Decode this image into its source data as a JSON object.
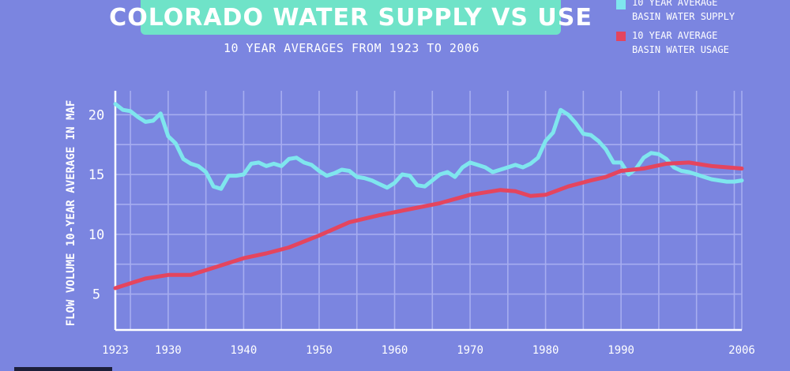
{
  "title": "COLORADO WATER SUPPLY VS USE",
  "subtitle": "10 YEAR AVERAGES FROM 1923 TO 2006",
  "legend": [
    {
      "line1": "10 YEAR AVERAGE",
      "line2": "BASIN WATER SUPPLY",
      "color": "#7fe6ee"
    },
    {
      "line1": "10 YEAR AVERAGE",
      "line2": "BASIN WATER USAGE",
      "color": "#e4455e"
    }
  ],
  "colors": {
    "background": "#7b85e0",
    "title_box": "#6fe3c8",
    "gridline": "#a6adf0"
  },
  "chart_data": {
    "type": "line",
    "title": "COLORADO WATER SUPPLY VS USE",
    "subtitle": "10 YEAR AVERAGES FROM 1923 TO 2006",
    "xlabel": "",
    "ylabel": "FLOW VOLUME  10-YEAR AVERAGE IN MAF",
    "xlim": [
      1923,
      2006
    ],
    "ylim": [
      2,
      22
    ],
    "xticks": [
      "1923",
      "1930",
      "1940",
      "1950",
      "1960",
      "1970",
      "1980",
      "1990",
      "2006"
    ],
    "yticks": [
      "5",
      "10",
      "15",
      "20"
    ],
    "grid": true,
    "legend_position": "top-right",
    "series": [
      {
        "name": "10 YEAR AVERAGE BASIN WATER SUPPLY",
        "color": "#7fe6ee",
        "x": [
          1923,
          1924,
          1925,
          1926,
          1927,
          1928,
          1929,
          1930,
          1931,
          1932,
          1933,
          1934,
          1935,
          1936,
          1937,
          1938,
          1939,
          1940,
          1941,
          1942,
          1943,
          1944,
          1945,
          1946,
          1947,
          1948,
          1949,
          1950,
          1951,
          1952,
          1953,
          1954,
          1955,
          1956,
          1957,
          1958,
          1959,
          1960,
          1961,
          1962,
          1963,
          1964,
          1965,
          1966,
          1967,
          1968,
          1969,
          1970,
          1971,
          1972,
          1973,
          1974,
          1975,
          1976,
          1977,
          1978,
          1979,
          1980,
          1981,
          1982,
          1983,
          1984,
          1985,
          1986,
          1987,
          1988,
          1989,
          1990,
          1991,
          1992,
          1993,
          1994,
          1995,
          1996,
          1997,
          1998,
          1999,
          2000,
          2001,
          2002,
          2003,
          2004,
          2005,
          2006
        ],
        "values": [
          20.9,
          20.4,
          20.3,
          19.8,
          19.4,
          19.5,
          20.1,
          18.2,
          17.6,
          16.3,
          15.9,
          15.7,
          15.2,
          14.0,
          13.8,
          14.9,
          14.9,
          15.0,
          15.9,
          16.0,
          15.7,
          15.9,
          15.7,
          16.3,
          16.4,
          16.0,
          15.8,
          15.3,
          14.9,
          15.1,
          15.4,
          15.3,
          14.8,
          14.7,
          14.5,
          14.2,
          13.9,
          14.3,
          15.0,
          14.9,
          14.1,
          14.0,
          14.5,
          15.0,
          15.2,
          14.8,
          15.6,
          16.0,
          15.8,
          15.6,
          15.2,
          15.4,
          15.6,
          15.8,
          15.6,
          15.9,
          16.4,
          17.8,
          18.5,
          20.4,
          20.0,
          19.3,
          18.4,
          18.3,
          17.8,
          17.1,
          16.0,
          16.0,
          15.0,
          15.5,
          16.4,
          16.8,
          16.7,
          16.3,
          15.6,
          15.3,
          15.2,
          15.0,
          14.8,
          14.6,
          14.5,
          14.4,
          14.4,
          14.5
        ]
      },
      {
        "name": "10 YEAR AVERAGE BASIN WATER USAGE",
        "color": "#e4455e",
        "x": [
          1923,
          1925,
          1927,
          1930,
          1933,
          1936,
          1940,
          1943,
          1946,
          1950,
          1954,
          1958,
          1962,
          1966,
          1970,
          1974,
          1976,
          1978,
          1980,
          1983,
          1986,
          1988,
          1990,
          1993,
          1996,
          1999,
          2002,
          2006
        ],
        "values": [
          5.5,
          5.9,
          6.3,
          6.6,
          6.6,
          7.2,
          8.0,
          8.4,
          8.9,
          9.9,
          11.0,
          11.6,
          12.1,
          12.6,
          13.3,
          13.7,
          13.6,
          13.2,
          13.3,
          14.0,
          14.5,
          14.8,
          15.3,
          15.5,
          15.9,
          16.0,
          15.7,
          15.5
        ]
      }
    ]
  }
}
